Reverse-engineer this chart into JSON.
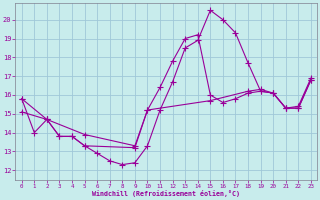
{
  "xlabel": "Windchill (Refroidissement éolien,°C)",
  "xlim": [
    -0.5,
    23.5
  ],
  "ylim": [
    11.5,
    20.9
  ],
  "yticks": [
    12,
    13,
    14,
    15,
    16,
    17,
    18,
    19,
    20
  ],
  "xticks": [
    0,
    1,
    2,
    3,
    4,
    5,
    6,
    7,
    8,
    9,
    10,
    11,
    12,
    13,
    14,
    15,
    16,
    17,
    18,
    19,
    20,
    21,
    22,
    23
  ],
  "bg_color": "#c8ecec",
  "grid_color": "#a0c8d8",
  "line_color": "#990099",
  "curve1_x": [
    0,
    1,
    2,
    3,
    4,
    5,
    6,
    7,
    8,
    9,
    10,
    11,
    12,
    13,
    14,
    15,
    16,
    17,
    18,
    19,
    20,
    21,
    22,
    23
  ],
  "curve1_y": [
    15.8,
    14.0,
    14.7,
    13.8,
    13.8,
    13.3,
    12.9,
    12.5,
    12.3,
    12.4,
    13.3,
    15.2,
    16.7,
    18.5,
    18.9,
    20.5,
    20.0,
    19.3,
    17.7,
    16.2,
    16.1,
    15.3,
    15.3,
    16.8
  ],
  "curve2_x": [
    0,
    2,
    3,
    4,
    5,
    9,
    10,
    11,
    12,
    13,
    14,
    15,
    16,
    17,
    18,
    19,
    20,
    21,
    22,
    23
  ],
  "curve2_y": [
    15.8,
    14.7,
    13.8,
    13.8,
    13.3,
    13.2,
    15.2,
    16.4,
    17.8,
    19.0,
    19.2,
    16.0,
    15.6,
    15.8,
    16.1,
    16.2,
    16.1,
    15.3,
    15.3,
    16.8
  ],
  "curve3_x": [
    0,
    2,
    5,
    9,
    10,
    15,
    18,
    19,
    20,
    21,
    22,
    23
  ],
  "curve3_y": [
    15.1,
    14.7,
    13.9,
    13.3,
    15.2,
    15.7,
    16.2,
    16.3,
    16.1,
    15.3,
    15.4,
    16.9
  ],
  "marker_size": 2.5,
  "linewidth": 0.8
}
